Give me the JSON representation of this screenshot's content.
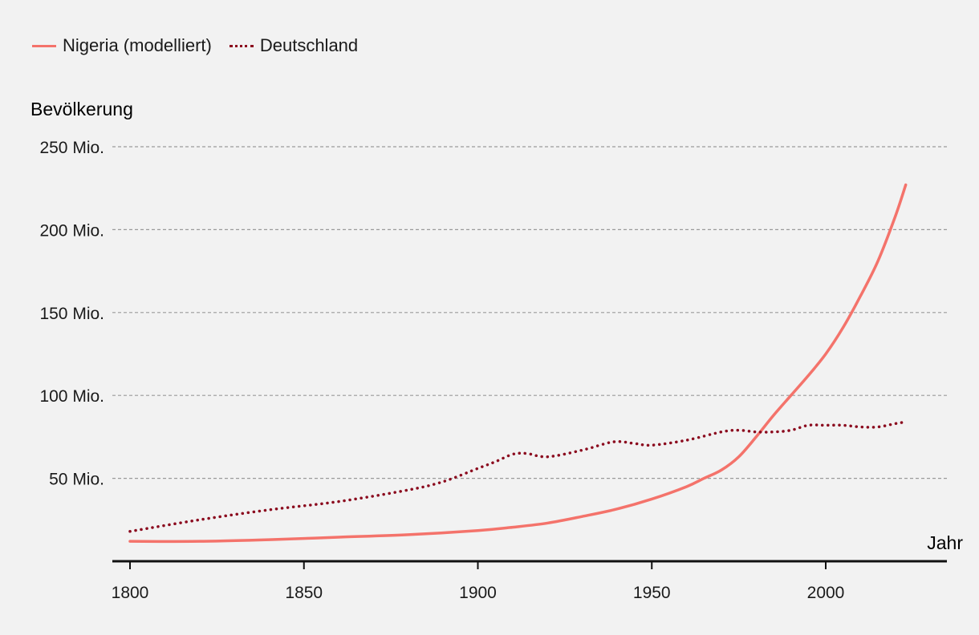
{
  "chart_data": {
    "type": "line",
    "title": "",
    "ylabel": "Bevölkerung",
    "xlabel": "Jahr",
    "xlim": [
      1795,
      2030
    ],
    "ylim": [
      0,
      250000000
    ],
    "x_ticks": [
      1800,
      1850,
      1900,
      1950,
      2000
    ],
    "x_tick_labels": [
      "1800",
      "1850",
      "1900",
      "1950",
      "2000"
    ],
    "y_ticks": [
      50000000,
      100000000,
      150000000,
      200000000,
      250000000
    ],
    "y_tick_labels": [
      "50 Mio.",
      "100 Mio.",
      "150 Mio.",
      "200 Mio.",
      "250 Mio."
    ],
    "grid": true,
    "legend_position": "top-left",
    "series": [
      {
        "name": "Nigeria (modelliert)",
        "color": "#f4736b",
        "style": "solid",
        "x": [
          1800,
          1820,
          1840,
          1860,
          1880,
          1900,
          1910,
          1920,
          1930,
          1940,
          1950,
          1960,
          1965,
          1970,
          1975,
          1980,
          1985,
          1990,
          1995,
          2000,
          2005,
          2010,
          2015,
          2020,
          2023
        ],
        "values": [
          12000000,
          12000000,
          13000000,
          14500000,
          16000000,
          18500000,
          20500000,
          23000000,
          27000000,
          31500000,
          37500000,
          45000000,
          50000000,
          55000000,
          63000000,
          75000000,
          88000000,
          100000000,
          112000000,
          125000000,
          141000000,
          160000000,
          181000000,
          208000000,
          227000000
        ]
      },
      {
        "name": "Deutschland",
        "color": "#8b0a1e",
        "style": "dotted",
        "x": [
          1800,
          1820,
          1840,
          1860,
          1880,
          1890,
          1900,
          1905,
          1910,
          1914,
          1920,
          1930,
          1939,
          1945,
          1950,
          1960,
          1970,
          1975,
          1980,
          1985,
          1990,
          1995,
          2000,
          2005,
          2010,
          2015,
          2020,
          2023
        ],
        "values": [
          18000000,
          25000000,
          31000000,
          36000000,
          43000000,
          48000000,
          56000000,
          60000000,
          64500000,
          65000000,
          63000000,
          67000000,
          72000000,
          71000000,
          70000000,
          73000000,
          78000000,
          79000000,
          78000000,
          78000000,
          79000000,
          82000000,
          82000000,
          82000000,
          81000000,
          81000000,
          83000000,
          84000000
        ]
      }
    ]
  }
}
